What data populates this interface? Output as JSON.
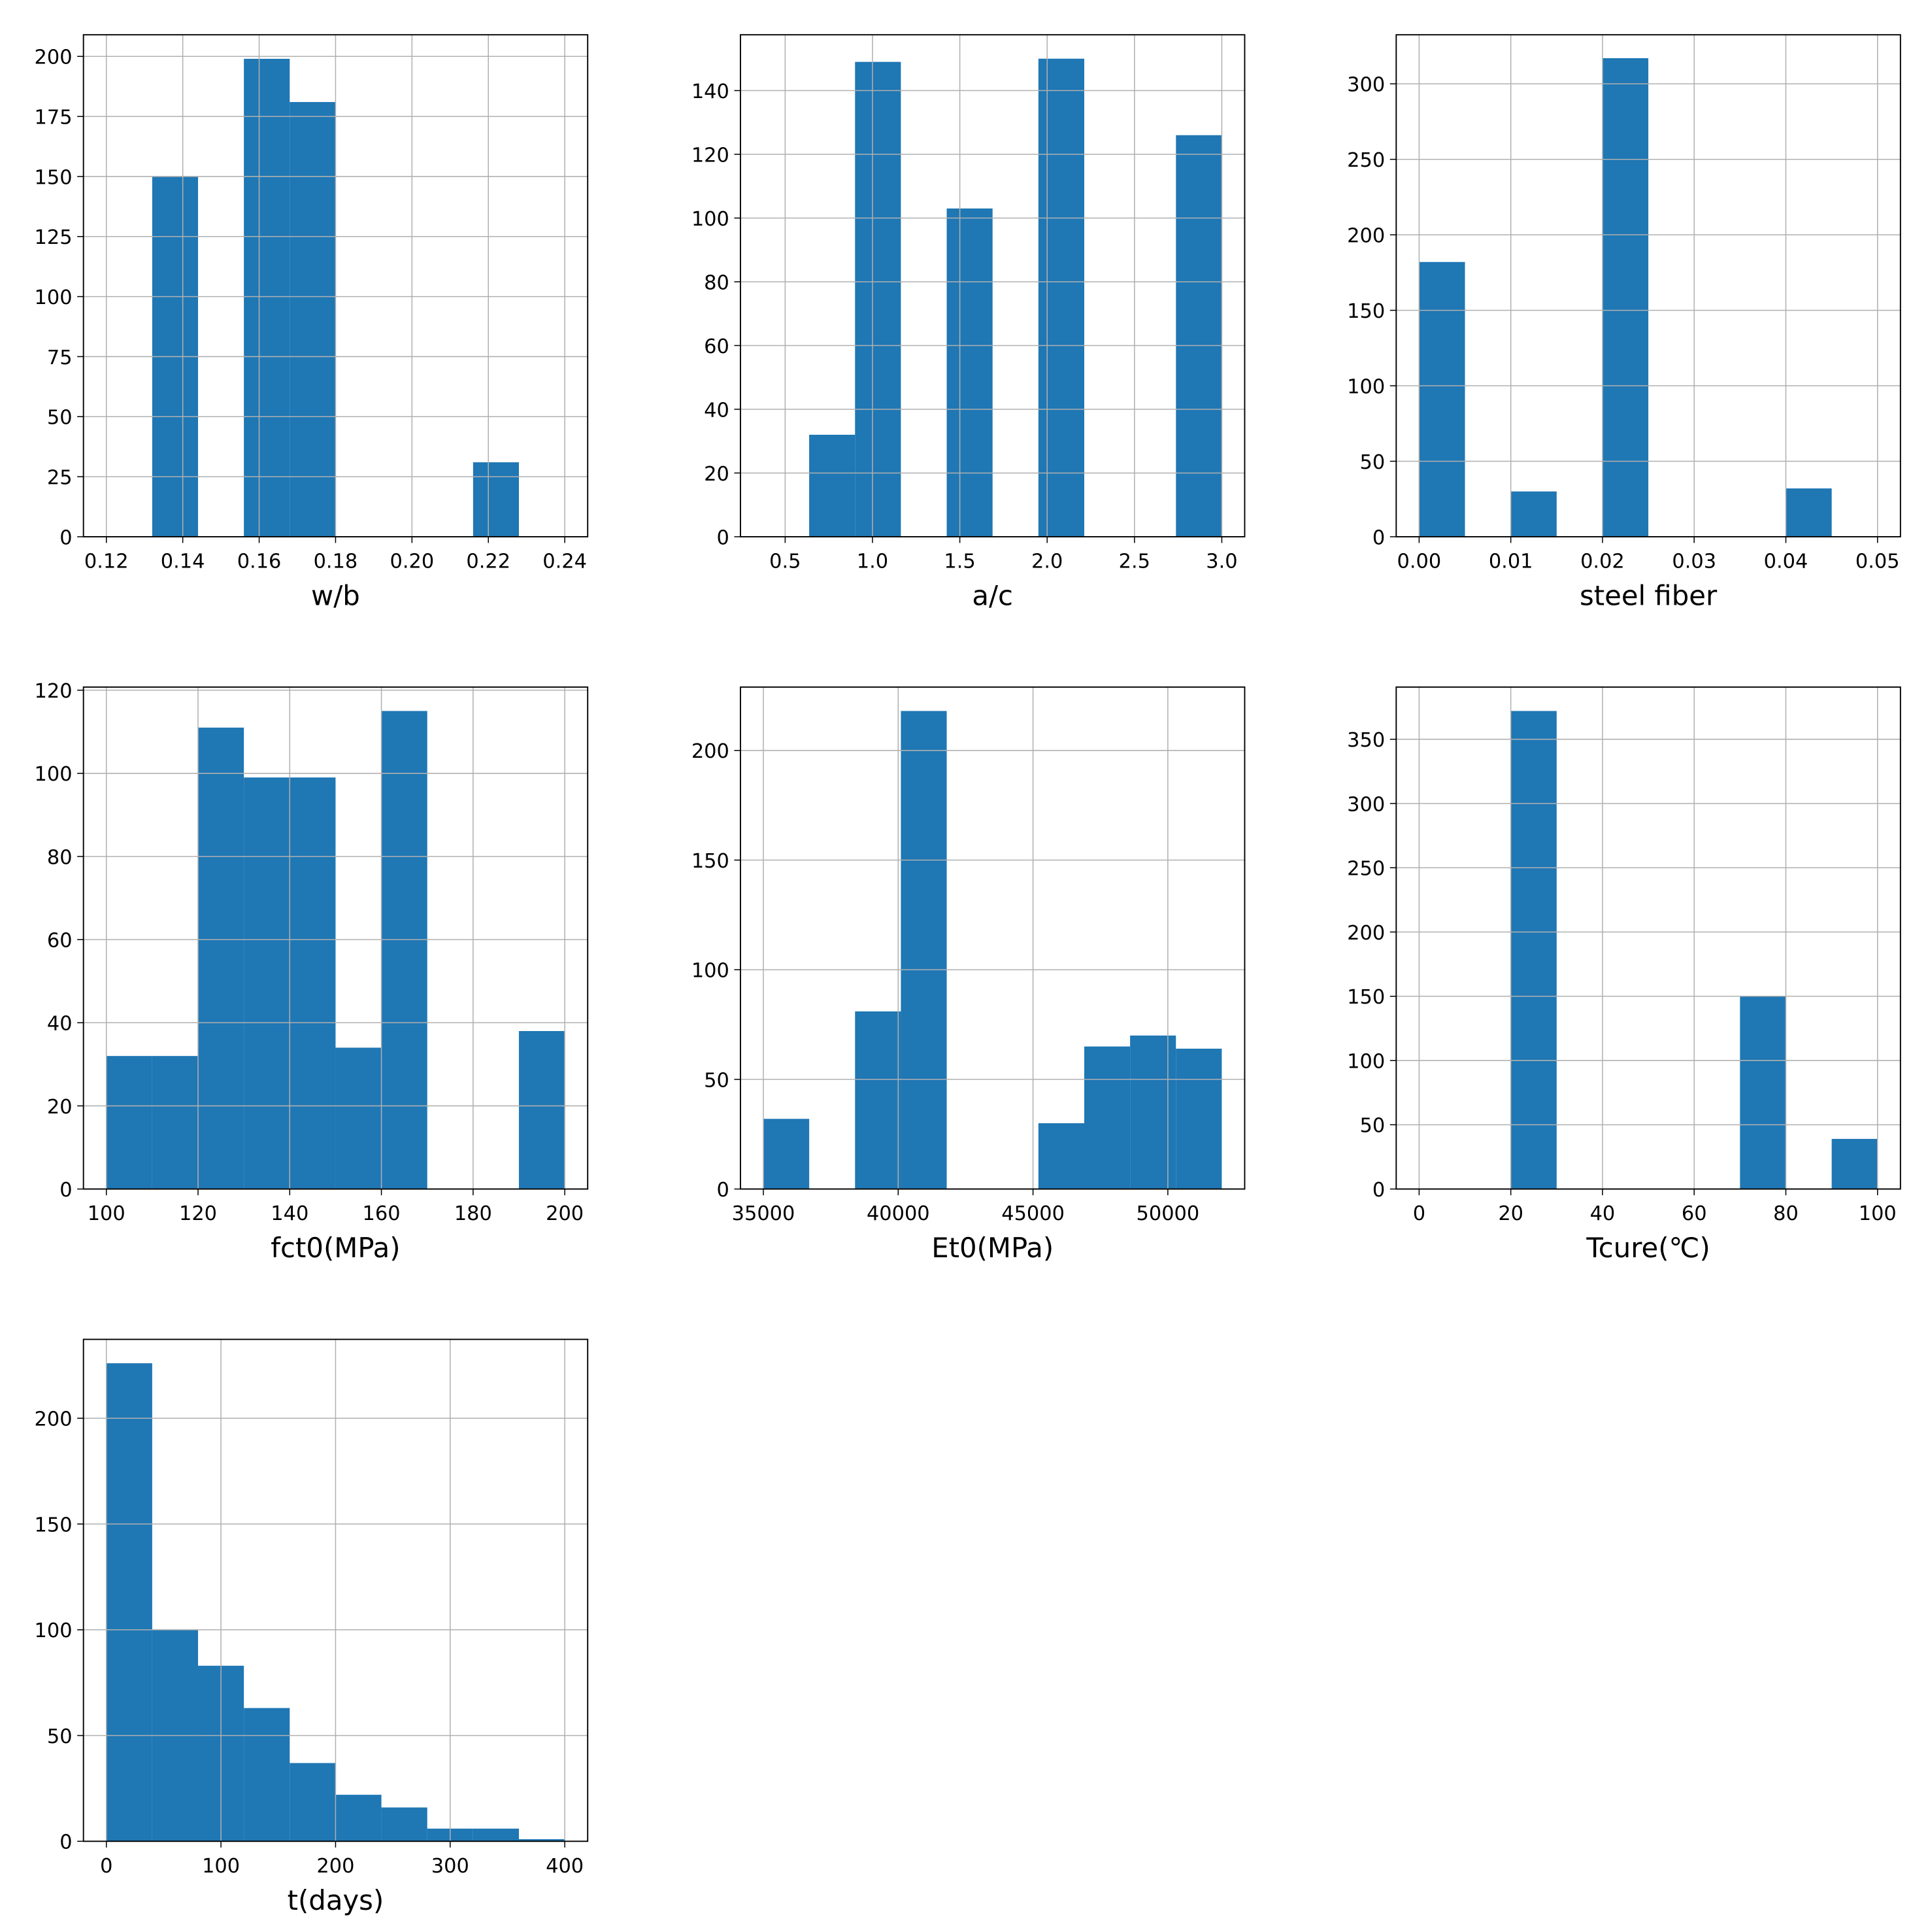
{
  "chart_data": [
    {
      "type": "histogram",
      "xlabel": "w/b",
      "color": "#1f77b4",
      "grid": true,
      "bins": [
        0.12,
        0.132,
        0.144,
        0.156,
        0.168,
        0.18,
        0.192,
        0.204,
        0.216,
        0.228,
        0.24
      ],
      "values": [
        0,
        150,
        0,
        199,
        181,
        0,
        0,
        0,
        31,
        0
      ],
      "xlim": [
        0.114,
        0.246
      ],
      "xticks": [
        0.12,
        0.14,
        0.16,
        0.18,
        {
          "value": 0.2,
          "label": "0.20"
        },
        0.22,
        0.24
      ],
      "ylim": [
        0,
        209
      ],
      "yticks": [
        0,
        25,
        50,
        75,
        100,
        125,
        150,
        175,
        200
      ]
    },
    {
      "type": "histogram",
      "xlabel": "a/c",
      "color": "#1f77b4",
      "grid": true,
      "bins": [
        0.375,
        0.6375,
        0.9,
        1.1625,
        1.425,
        1.6875,
        1.95,
        2.2125,
        2.475,
        2.7375,
        3.0
      ],
      "values": [
        0,
        32,
        149,
        0,
        103,
        0,
        150,
        0,
        0,
        126
      ],
      "xlim": [
        0.244,
        3.131
      ],
      "xticks": [
        0.5,
        {
          "value": 1,
          "label": "1.0"
        },
        1.5,
        {
          "value": 2,
          "label": "2.0"
        },
        2.5,
        {
          "value": 3,
          "label": "3.0"
        }
      ],
      "ylim": [
        0,
        157.5
      ],
      "yticks": [
        0,
        20,
        40,
        60,
        80,
        100,
        120,
        140
      ]
    },
    {
      "type": "histogram",
      "xlabel": "steel fiber",
      "color": "#1f77b4",
      "grid": true,
      "bins": [
        0,
        0.005,
        0.01,
        0.015,
        0.02,
        0.025,
        0.03,
        0.035,
        0.04,
        0.045,
        0.05
      ],
      "values": [
        182,
        0,
        30,
        0,
        317,
        0,
        0,
        0,
        32,
        0
      ],
      "xlim": [
        -0.0025,
        0.0525
      ],
      "xticks": [
        {
          "value": 0,
          "label": "0.00"
        },
        0.01,
        0.02,
        0.03,
        0.04,
        0.05
      ],
      "ylim": [
        0,
        332.5
      ],
      "yticks": [
        0,
        50,
        100,
        150,
        200,
        250,
        300
      ]
    },
    {
      "type": "histogram",
      "xlabel": "fct0(MPa)",
      "color": "#1f77b4",
      "grid": true,
      "bins": [
        100,
        110,
        120,
        130,
        140,
        150,
        160,
        170,
        180,
        190,
        200
      ],
      "values": [
        32,
        32,
        111,
        99,
        99,
        34,
        115,
        0,
        0,
        38
      ],
      "xlim": [
        95,
        205
      ],
      "xticks": [
        100,
        120,
        140,
        160,
        180,
        200
      ],
      "ylim": [
        0,
        120.75
      ],
      "yticks": [
        0,
        20,
        40,
        60,
        80,
        100,
        120
      ]
    },
    {
      "type": "histogram",
      "xlabel": "Et0(MPa)",
      "color": "#1f77b4",
      "grid": true,
      "bins": [
        35000,
        36700,
        38400,
        40100,
        41800,
        43500,
        45200,
        46900,
        48600,
        50300,
        52000
      ],
      "values": [
        32,
        0,
        81,
        218,
        0,
        0,
        30,
        65,
        70,
        64
      ],
      "xlim": [
        34150,
        52850
      ],
      "xticks": [
        35000,
        40000,
        45000,
        50000
      ],
      "ylim": [
        0,
        228.9
      ],
      "yticks": [
        0,
        50,
        100,
        150,
        200
      ]
    },
    {
      "type": "histogram",
      "xlabel": "Tcure(℃)",
      "color": "#1f77b4",
      "grid": true,
      "bins": [
        0,
        10,
        20,
        30,
        40,
        50,
        60,
        70,
        80,
        90,
        100
      ],
      "values": [
        0,
        0,
        372,
        0,
        0,
        0,
        0,
        150,
        0,
        39
      ],
      "xlim": [
        -5,
        105
      ],
      "xticks": [
        0,
        20,
        40,
        60,
        80,
        100
      ],
      "ylim": [
        0,
        390.6
      ],
      "yticks": [
        0,
        50,
        100,
        150,
        200,
        250,
        300,
        350
      ]
    },
    {
      "type": "histogram",
      "xlabel": "t(days)",
      "color": "#1f77b4",
      "grid": true,
      "bins": [
        0,
        40,
        80,
        120,
        160,
        200,
        240,
        280,
        320,
        360,
        400
      ],
      "values": [
        226,
        100,
        83,
        63,
        37,
        22,
        16,
        6,
        6,
        1
      ],
      "xlim": [
        -20,
        420
      ],
      "xticks": [
        0,
        100,
        200,
        300,
        400
      ],
      "ylim": [
        0,
        237.3
      ],
      "yticks": [
        0,
        50,
        100,
        150,
        200
      ]
    }
  ]
}
